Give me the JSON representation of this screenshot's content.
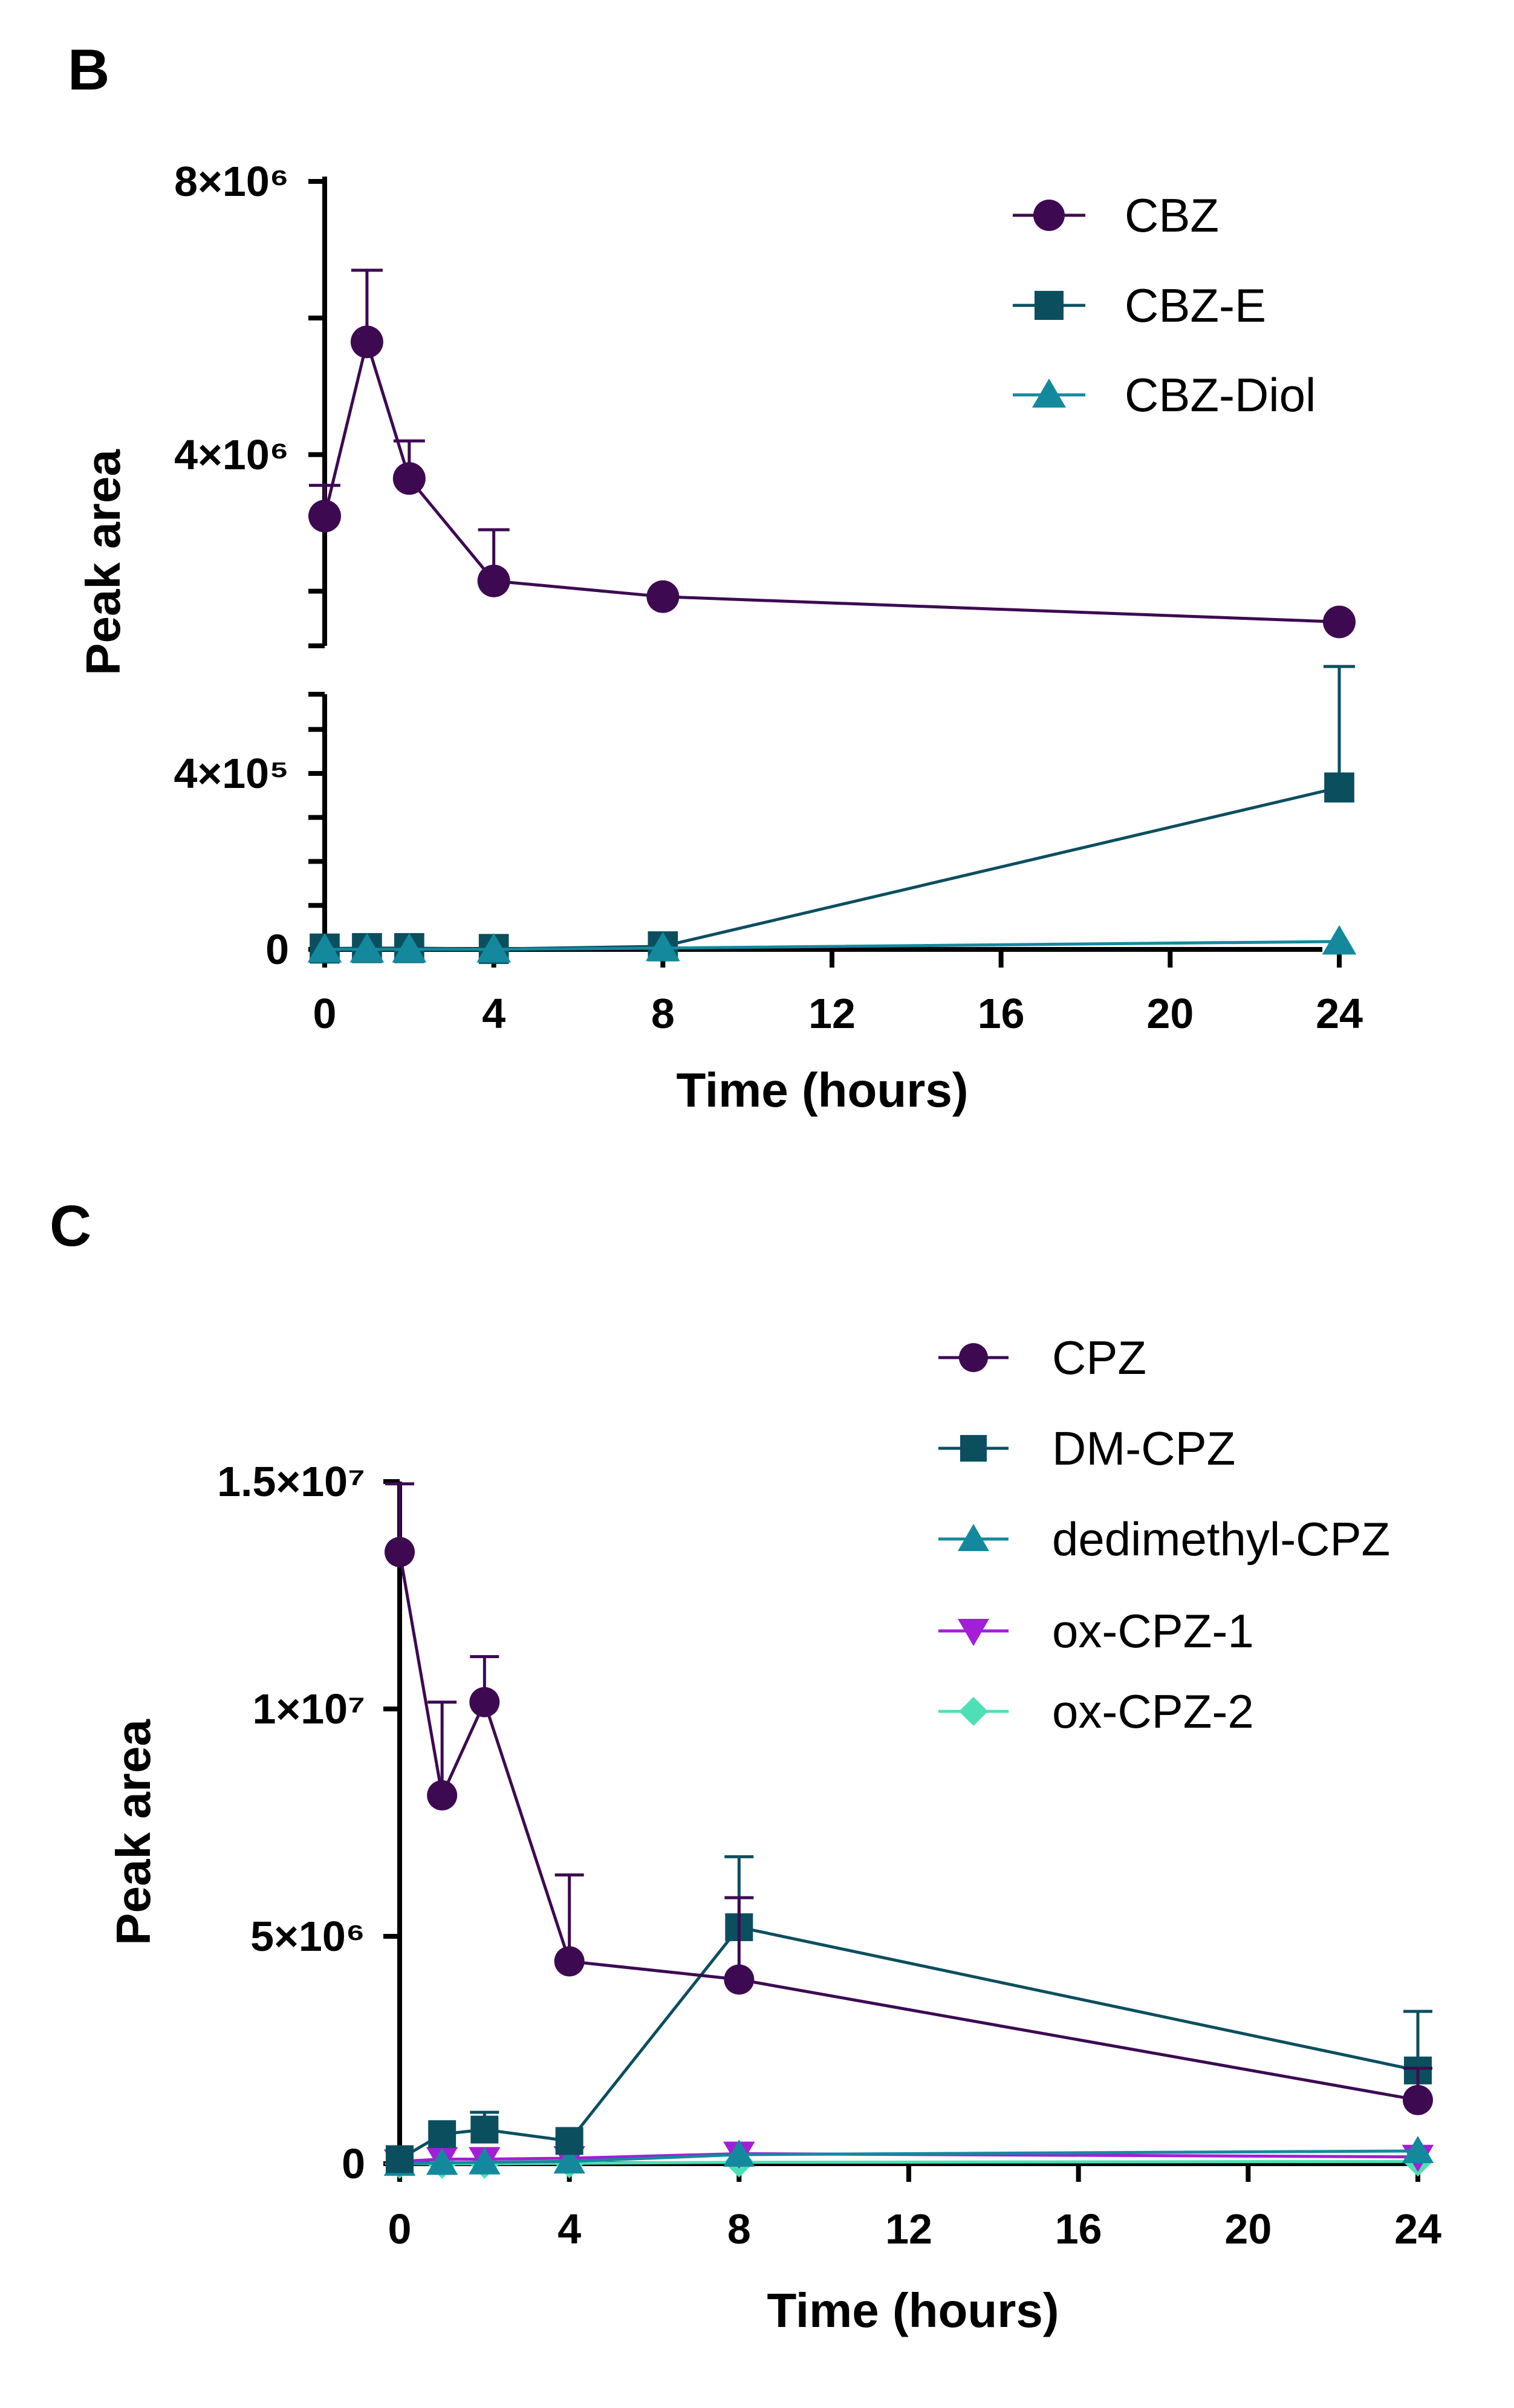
{
  "colors": {
    "CBZ": "#3d0a52",
    "CBZ-E": "#0b4f5f",
    "CBZ-Diol": "#14899e",
    "CPZ": "#3d0a52",
    "DM-CPZ": "#0b4f5f",
    "dedimethyl-CPZ": "#14899e",
    "ox-CPZ-1": "#a31ed6",
    "ox-CPZ-2": "#4ee0b4",
    "axis": "#000000"
  },
  "chart_data": [
    {
      "panel": "B",
      "type": "line",
      "xlabel": "Time (hours)",
      "ylabel": "Peak area",
      "x_ticks": [
        "0",
        "4",
        "8",
        "12",
        "16",
        "20",
        "24"
      ],
      "xlim": [
        0,
        24
      ],
      "segmented_y_axis": true,
      "upper_segment": {
        "ylim": [
          1200000,
          8000000
        ],
        "labeled_ticks": [
          {
            "value": 4000000,
            "label": "4×10⁶"
          },
          {
            "value": 8000000,
            "label": "8×10⁶"
          }
        ]
      },
      "lower_segment": {
        "ylim": [
          0,
          580000
        ],
        "labeled_ticks": [
          {
            "value": 0,
            "label": "0"
          },
          {
            "value": 400000,
            "label": "4×10⁵"
          }
        ]
      },
      "x": [
        0,
        1,
        2,
        4,
        8,
        24
      ],
      "series": [
        {
          "name": "CBZ",
          "marker": "circle",
          "values": [
            3100000,
            5650000,
            3650000,
            2150000,
            1920000,
            1550000
          ],
          "error": [
            450000,
            1050000,
            550000,
            750000,
            0,
            0
          ]
        },
        {
          "name": "CBZ-E",
          "marker": "square",
          "values": [
            2000,
            3000,
            3000,
            1000,
            7000,
            368000
          ],
          "error": [
            0,
            0,
            0,
            0,
            0,
            275000
          ]
        },
        {
          "name": "CBZ-Diol",
          "marker": "triangle",
          "values": [
            0,
            0,
            0,
            0,
            3000,
            18000
          ],
          "error": [
            0,
            0,
            0,
            0,
            0,
            0
          ]
        }
      ]
    },
    {
      "panel": "C",
      "type": "line",
      "xlabel": "Time (hours)",
      "ylabel": "Peak area",
      "x_ticks": [
        "0",
        "4",
        "8",
        "12",
        "16",
        "20",
        "24"
      ],
      "xlim": [
        0,
        24
      ],
      "ylim": [
        0,
        15000000
      ],
      "y_ticks": [
        {
          "value": 0,
          "label": "0"
        },
        {
          "value": 5000000,
          "label": "5×10⁶"
        },
        {
          "value": 10000000,
          "label": "1×10⁷"
        },
        {
          "value": 15000000,
          "label": "1.5×10⁷"
        }
      ],
      "x": [
        0,
        1,
        2,
        4,
        8,
        24
      ],
      "series": [
        {
          "name": "CPZ",
          "marker": "circle",
          "values": [
            13450000,
            8100000,
            10150000,
            4450000,
            4050000,
            1400000
          ],
          "error": [
            1500000,
            2050000,
            1000000,
            1900000,
            1800000,
            700000
          ]
        },
        {
          "name": "DM-CPZ",
          "marker": "square",
          "values": [
            100000,
            650000,
            750000,
            500000,
            5200000,
            2050000
          ],
          "error": [
            0,
            0,
            380000,
            0,
            1550000,
            1300000
          ]
        },
        {
          "name": "dedimethyl-CPZ",
          "marker": "triangle",
          "values": [
            0,
            20000,
            30000,
            50000,
            200000,
            280000
          ],
          "error": [
            0,
            0,
            0,
            0,
            0,
            0
          ]
        },
        {
          "name": "ox-CPZ-1",
          "marker": "triangle-down",
          "values": [
            50000,
            100000,
            100000,
            120000,
            220000,
            150000
          ],
          "error": [
            0,
            0,
            0,
            0,
            0,
            0
          ]
        },
        {
          "name": "ox-CPZ-2",
          "marker": "diamond",
          "values": [
            0,
            0,
            0,
            10000,
            30000,
            50000
          ],
          "error": [
            0,
            0,
            0,
            0,
            0,
            0
          ]
        }
      ]
    }
  ],
  "panel_b": {
    "letter": "B",
    "ylabel": "Peak area",
    "xlabel": "Time (hours)",
    "legend": [
      "CBZ",
      "CBZ-E",
      "CBZ-Diol"
    ]
  },
  "panel_c": {
    "letter": "C",
    "ylabel": "Peak area",
    "xlabel": "Time (hours)",
    "legend": [
      "CPZ",
      "DM-CPZ",
      "dedimethyl-CPZ",
      "ox-CPZ-1",
      "ox-CPZ-2"
    ]
  }
}
